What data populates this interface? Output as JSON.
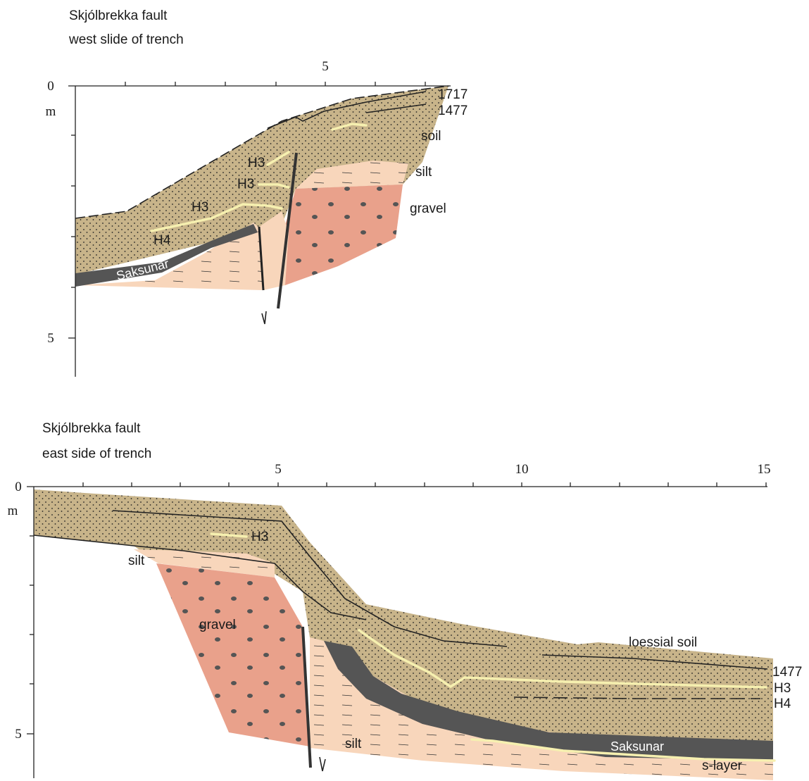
{
  "sections": [
    {
      "title": "Skjólbrekka fault",
      "subtitle": "west slide of trench",
      "x_tick_labels": [
        5
      ],
      "y_tick_labels": [
        0,
        5
      ],
      "y_unit": "m",
      "labels": [
        "1717",
        "1477",
        "soil",
        "silt",
        "gravel",
        "H3",
        "H3",
        "H3",
        "H4",
        "Saksunar"
      ]
    },
    {
      "title": "Skjólbrekka fault",
      "subtitle": "east side of trench",
      "x_tick_labels": [
        5,
        10,
        15
      ],
      "y_tick_labels": [
        0,
        5
      ],
      "y_unit": "m",
      "labels": [
        "H3",
        "silt",
        "gravel",
        "loessial soil",
        "1477",
        "H3",
        "H4",
        "Saksunar",
        "silt",
        "s-layer"
      ]
    }
  ]
}
